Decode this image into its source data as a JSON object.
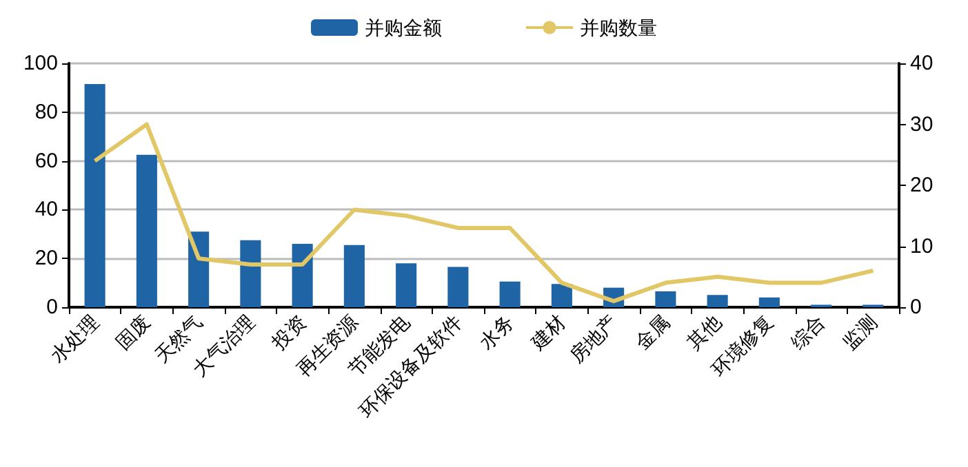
{
  "chart_data": {
    "type": "bar",
    "categories": [
      "水处理",
      "固废",
      "天然气",
      "大气治理",
      "投资",
      "再生资源",
      "节能发电",
      "环保设备及软件",
      "水务",
      "建材",
      "房地产",
      "金属",
      "其他",
      "环境修复",
      "综合",
      "监测"
    ],
    "series": [
      {
        "name": "并购金额",
        "color": "#1f64a4",
        "values": [
          91.5,
          62.5,
          31,
          27.5,
          26,
          25.5,
          18,
          16.5,
          10.5,
          9.5,
          8,
          6.5,
          5,
          4,
          1,
          1
        ]
      },
      {
        "name": "并购数量",
        "type": "line",
        "axis": "y2",
        "color": "#e2c766",
        "values": [
          24,
          30,
          8,
          7,
          7,
          16,
          15,
          13,
          13,
          4,
          1,
          4,
          5,
          4,
          4,
          6
        ]
      }
    ],
    "ylim": [
      0,
      100
    ],
    "yticks": [
      0,
      20,
      40,
      60,
      80,
      100
    ],
    "y2lim": [
      0,
      40
    ],
    "y2ticks": [
      0,
      10,
      20,
      30,
      40
    ],
    "grid": "y",
    "legend": "top",
    "marker": "none"
  }
}
